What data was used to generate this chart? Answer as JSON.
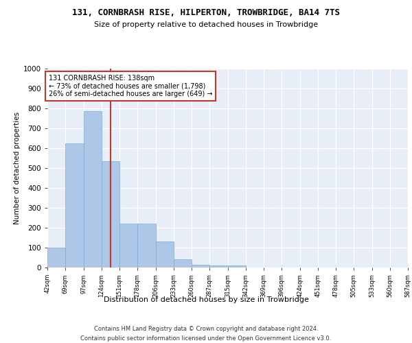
{
  "title": "131, CORNBRASH RISE, HILPERTON, TROWBRIDGE, BA14 7TS",
  "subtitle": "Size of property relative to detached houses in Trowbridge",
  "chart_xlabel": "Distribution of detached houses by size in Trowbridge",
  "ylabel": "Number of detached properties",
  "bar_color": "#aec6e8",
  "bar_edge_color": "#7aadce",
  "background_color": "#e8eef7",
  "grid_color": "#ffffff",
  "vline_x": 138,
  "vline_color": "#c0392b",
  "annotation_text": "131 CORNBRASH RISE: 138sqm\n← 73% of detached houses are smaller (1,798)\n26% of semi-detached houses are larger (649) →",
  "annotation_box_color": "#ffffff",
  "annotation_box_edgecolor": "#c0392b",
  "footer": "Contains HM Land Registry data © Crown copyright and database right 2024.\nContains public sector information licensed under the Open Government Licence v3.0.",
  "bin_edges": [
    42,
    69,
    97,
    124,
    151,
    178,
    206,
    233,
    260,
    287,
    315,
    342,
    369,
    396,
    424,
    451,
    478,
    505,
    533,
    560,
    587
  ],
  "bin_labels": [
    "42sqm",
    "69sqm",
    "97sqm",
    "124sqm",
    "151sqm",
    "178sqm",
    "206sqm",
    "233sqm",
    "260sqm",
    "287sqm",
    "315sqm",
    "342sqm",
    "369sqm",
    "396sqm",
    "424sqm",
    "451sqm",
    "478sqm",
    "505sqm",
    "533sqm",
    "560sqm",
    "587sqm"
  ],
  "bar_heights": [
    100,
    625,
    785,
    535,
    220,
    220,
    130,
    40,
    15,
    10,
    10,
    0,
    0,
    0,
    0,
    0,
    0,
    0,
    0,
    0
  ],
  "ylim": [
    0,
    1000
  ],
  "yticks": [
    0,
    100,
    200,
    300,
    400,
    500,
    600,
    700,
    800,
    900,
    1000
  ]
}
